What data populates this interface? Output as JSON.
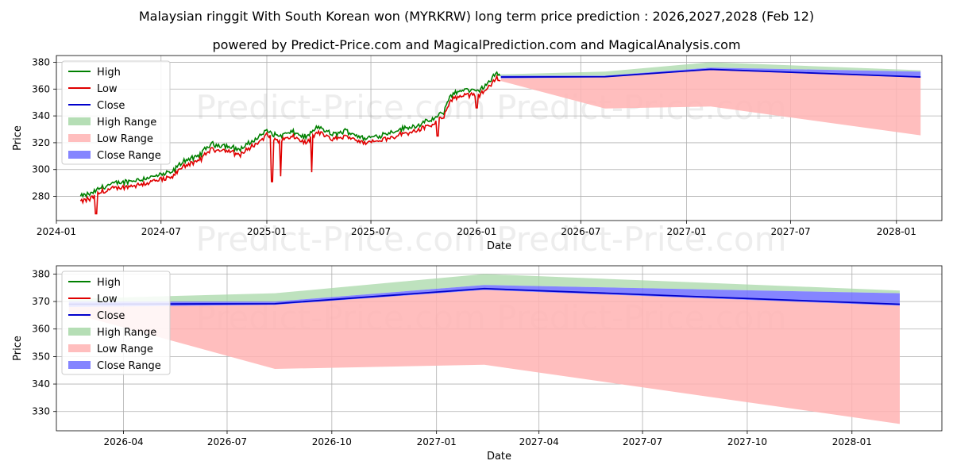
{
  "title": "Malaysian ringgit With South Korean won (MYRKRW) long term price prediction : 2026,2027,2028 (Feb 12)",
  "subtitle": "powered by Predict-Price.com and MagicalPrediction.com and MagicalAnalysis.com",
  "watermark": "Predict-Price.com",
  "colors": {
    "high": "#008000",
    "low": "#e00000",
    "close": "#0000cc",
    "high_range": "#a8d8a8",
    "low_range": "#ffb3b3",
    "close_range": "#7070ff"
  },
  "legend": [
    "High",
    "Low",
    "Close",
    "High Range",
    "Low Range",
    "Close Range"
  ],
  "chart_data": [
    {
      "type": "line",
      "name": "history-and-forecast",
      "xlabel": "Date",
      "ylabel": "Price",
      "xlim": [
        "2024-01-01",
        "2028-03-20"
      ],
      "ylim": [
        262,
        385
      ],
      "x_ticks": [
        "2024-01",
        "2024-07",
        "2025-01",
        "2025-07",
        "2026-01",
        "2026-07",
        "2027-01",
        "2027-07",
        "2028-01"
      ],
      "y_ticks": [
        280,
        300,
        320,
        340,
        360,
        380
      ],
      "grid": true,
      "legend_position": "top-left",
      "history_keypoints": [
        {
          "date": "2024-02-12",
          "close": 278
        },
        {
          "date": "2024-03-01",
          "close": 280
        },
        {
          "date": "2024-03-20",
          "close": 285
        },
        {
          "date": "2024-04-15",
          "close": 288
        },
        {
          "date": "2024-05-15",
          "close": 290
        },
        {
          "date": "2024-06-20",
          "close": 293
        },
        {
          "date": "2024-07-20",
          "close": 296
        },
        {
          "date": "2024-08-10",
          "close": 305
        },
        {
          "date": "2024-09-01",
          "close": 307
        },
        {
          "date": "2024-09-25",
          "close": 317
        },
        {
          "date": "2024-10-20",
          "close": 316
        },
        {
          "date": "2024-11-15",
          "close": 313
        },
        {
          "date": "2024-12-10",
          "close": 320
        },
        {
          "date": "2025-01-01",
          "close": 327
        },
        {
          "date": "2025-01-20",
          "close": 323
        },
        {
          "date": "2025-02-15",
          "close": 326
        },
        {
          "date": "2025-03-10",
          "close": 322
        },
        {
          "date": "2025-04-01",
          "close": 330
        },
        {
          "date": "2025-04-25",
          "close": 324
        },
        {
          "date": "2025-05-20",
          "close": 327
        },
        {
          "date": "2025-06-20",
          "close": 321
        },
        {
          "date": "2025-07-20",
          "close": 324
        },
        {
          "date": "2025-08-20",
          "close": 328
        },
        {
          "date": "2025-09-20",
          "close": 331
        },
        {
          "date": "2025-10-20",
          "close": 336
        },
        {
          "date": "2025-11-05",
          "close": 341
        },
        {
          "date": "2025-11-15",
          "close": 353
        },
        {
          "date": "2025-12-10",
          "close": 358
        },
        {
          "date": "2026-01-01",
          "close": 356
        },
        {
          "date": "2026-01-20",
          "close": 362
        },
        {
          "date": "2026-02-05",
          "close": 370
        },
        {
          "date": "2026-02-12",
          "close": 369
        }
      ],
      "spikes": [
        {
          "date": "2024-03-10",
          "low": 267
        },
        {
          "date": "2025-01-10",
          "low": 291
        },
        {
          "date": "2025-01-25",
          "low": 295
        },
        {
          "date": "2025-03-20",
          "low": 298
        },
        {
          "date": "2025-10-25",
          "low": 325
        },
        {
          "date": "2026-01-01",
          "low": 346
        }
      ]
    },
    {
      "type": "area",
      "name": "forecast",
      "xlabel": "Date",
      "ylabel": "Price",
      "xlim": [
        "2026-02-01",
        "2028-03-20"
      ],
      "ylim": [
        323,
        383
      ],
      "x_ticks": [
        "2026-04",
        "2026-07",
        "2026-10",
        "2027-01",
        "2027-04",
        "2027-07",
        "2027-10",
        "2028-01"
      ],
      "y_ticks": [
        330,
        340,
        350,
        360,
        370,
        380
      ],
      "grid": true,
      "legend_position": "top-left",
      "forecast": [
        {
          "date": "2026-02-12",
          "close": 369,
          "close_lo": 368,
          "close_hi": 370,
          "high_hi": 371,
          "low_lo": 366
        },
        {
          "date": "2026-08-12",
          "close": 369.2,
          "close_lo": 368.8,
          "close_hi": 370,
          "high_hi": 373,
          "low_lo": 345.5
        },
        {
          "date": "2027-02-12",
          "close": 374.7,
          "close_lo": 374.2,
          "close_hi": 376,
          "high_hi": 380,
          "low_lo": 347
        },
        {
          "date": "2028-02-12",
          "close": 369,
          "close_lo": 368.5,
          "close_hi": 373,
          "high_hi": 374,
          "low_lo": 325.5
        }
      ]
    }
  ],
  "x_axis_label": "Date",
  "y_axis_label": "Price"
}
